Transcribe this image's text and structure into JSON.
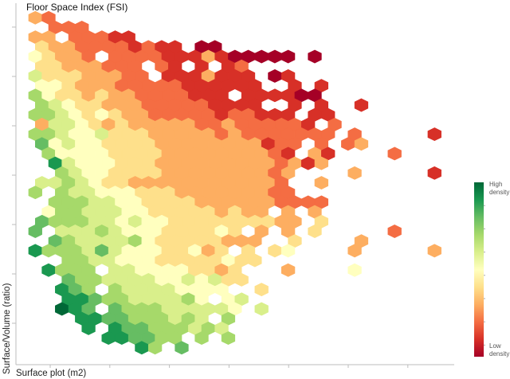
{
  "chart_data": {
    "type": "heatmap",
    "subtype": "hexbin",
    "title": "Floor Space Index (FSI)",
    "xlabel": "Surface plot (m2)",
    "ylabel": "Surface/Volume (ratio)",
    "grid": false,
    "colormap": [
      "#a50026",
      "#d73027",
      "#f46d43",
      "#fdae61",
      "#fee08b",
      "#ffffbf",
      "#d9ef8b",
      "#a6d96a",
      "#66bd63",
      "#1a9850",
      "#006837"
    ],
    "colorbar": {
      "high_label": "High density",
      "low_label": "Low density",
      "placement": "right"
    },
    "density_levels_note_scale": "0 = lowest density, 10 (A) = highest density; '.' = empty bin",
    "density_rows": [
      "32",
      ".222",
      "33.22211",
      "43322221211.00",
      "54332.22221113100000.0",
      "44333222.21.1.12",
      "644433322.1113111.01",
      "55433322222111111..1.1",
      "754434332222111.111100",
      "76544333222221111..1.1..1",
      "77654543322222122111.11",
      "366543433333223222221.2",
      "77655644433333232222222.2.....1",
      "85655444433333333122.2.23",
      ".7555544443333333321.31....2",
      ".965554443333333332313",
      "..765544443333333323....3.....1",
      "6676544333333333332..3",
      "7.766555444333333322",
      ".777665544443333332222",
      ".57766655444443433.3.3",
      "87776656554444444433.4",
      "8.66676555444454.3.3.4.....2",
      ".8766667544444333..4....3",
      "977768655544534.4.45....3.....3",
      "..776655544444544",
      ".9777.6655554434...3....5",
      "..87766665565644",
      "..987.766665555..4",
      "..99877666675.56",
      "..A98.8777666665.6",
      "...9988777676.7",
      "....9.988777676",
      ".....998877.7.7",
      "........97.8"
    ]
  }
}
